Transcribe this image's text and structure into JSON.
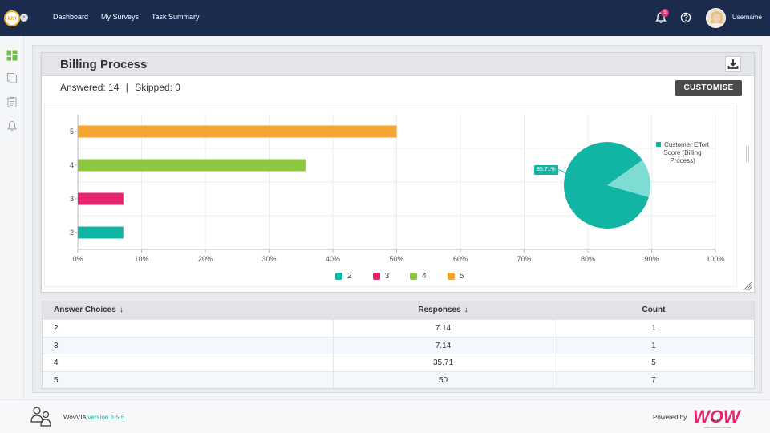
{
  "brand": {
    "logo_text": "xm",
    "collapse_label": "«"
  },
  "nav": [
    "Dashboard",
    "My Surveys",
    "Task Summary"
  ],
  "header": {
    "notification_count": "5",
    "username": "Username"
  },
  "sidebar": {
    "icons": [
      "dashboard-icon",
      "copy-icon",
      "clipboard-icon",
      "bell-icon"
    ]
  },
  "card": {
    "title": "Billing Process",
    "answered_label": "Answered: 14",
    "separator": "|",
    "skipped_label": "Skipped: 0",
    "customise_label": "CUSTOMISE"
  },
  "chart_data": [
    {
      "type": "bar",
      "orientation": "horizontal",
      "categories": [
        "5",
        "4",
        "3",
        "2"
      ],
      "values": [
        50,
        35.71,
        7.14,
        7.14
      ],
      "colors": [
        "#f4a531",
        "#8dc63f",
        "#e5266e",
        "#12b5a4"
      ],
      "xlim": [
        0,
        100
      ],
      "xticks": [
        "0%",
        "10%",
        "20%",
        "30%",
        "40%",
        "50%",
        "60%",
        "70%",
        "80%",
        "90%",
        "100%"
      ],
      "legend": [
        {
          "label": "2",
          "color": "#12b5a4"
        },
        {
          "label": "3",
          "color": "#e5266e"
        },
        {
          "label": "4",
          "color": "#8dc63f"
        },
        {
          "label": "5",
          "color": "#f4a531"
        }
      ],
      "legend_position": "bottom",
      "grid": true
    },
    {
      "type": "pie",
      "slices": [
        {
          "value": 85.71,
          "color": "#12b5a4",
          "label": "85.71%"
        },
        {
          "value": 14.29,
          "color": "#7fdcd2"
        }
      ],
      "legend": [
        {
          "label": "Customer Effort Score (Billing Process)",
          "color": "#12b5a4"
        }
      ],
      "legend_position": "top-right"
    }
  ],
  "table": {
    "headers": [
      "Answer Choices",
      "Responses",
      "Count"
    ],
    "sort_icon": "↓",
    "rows": [
      [
        "2",
        "7.14",
        "1"
      ],
      [
        "3",
        "7.14",
        "1"
      ],
      [
        "4",
        "35.71",
        "5"
      ],
      [
        "5",
        "50",
        "7"
      ]
    ]
  },
  "footer": {
    "app_name": "WovVIA",
    "version": "version 3.5.5",
    "powered_by": "Powered by",
    "logo_text": "WOW",
    "logo_sub": "TECH",
    "logo_tagline": "EMPOWERING FUTURE"
  }
}
